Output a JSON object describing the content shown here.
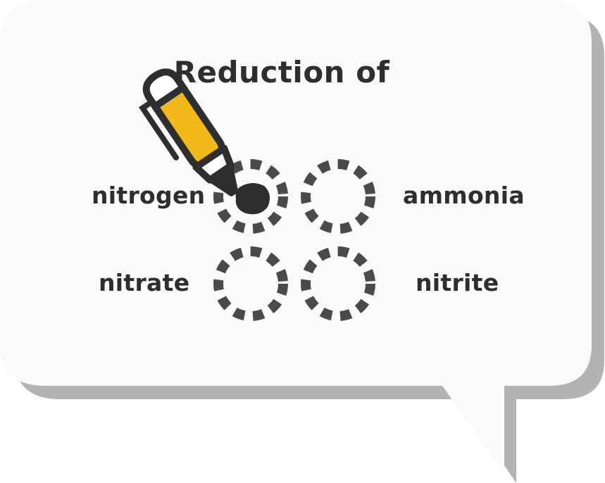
{
  "question": {
    "title": "Reduction of"
  },
  "options": [
    {
      "label": "nitrogen",
      "selected": true
    },
    {
      "label": "ammonia",
      "selected": false
    },
    {
      "label": "nitrate",
      "selected": false
    },
    {
      "label": "nitrite",
      "selected": false
    }
  ],
  "colors": {
    "bubble_fill": "#fafafa",
    "bubble_shadow": "#b3b3b3",
    "ink": "#2e2e2e",
    "dash": "#4a4a4a",
    "pen_body": "#f2b81c"
  },
  "icons": {
    "pen": "pen-icon"
  }
}
